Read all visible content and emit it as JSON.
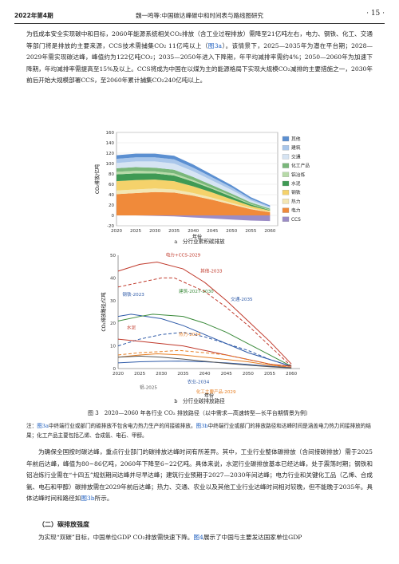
{
  "header": {
    "issue": "2022年第4期",
    "running_title": "魏一鸣等:中国碳达峰碳中和时间表与路线图研究",
    "page_number": "· 15 ·"
  },
  "para_top": {
    "text_1": "为低成本安全实现碳中和目标，2060年能源系统相关CO₂排放（含工业过程排放）需降至21亿吨左右，电力、钢铁、化工、交通等部门将是排放的主要来源，CCS技术需捕集CO₂ 11亿吨以上（",
    "link_1": "图3a",
    "text_2": "）。该情景下，2025—2035年为潜在平台期；2028—2029年需实现碳达峰，峰值约为122亿吨CO₂；2035—2050年进入下降期，年平均减排率需约4%；2050—2060年为加速下降期，年均减排率需提高至15%及以上。CCS将成为中国在以煤为主的能源格局下实现大规模CO₂减排的主要措施之一，2030年前后开始大规模部署CCS，至2060年累计捕集CO₂240亿吨以上。"
  },
  "figure_a": {
    "ylabel": "CO₂排放/亿吨",
    "xlabel": "年份",
    "sub_caption": "a　分行业累积碳排放"
  },
  "figure_b": {
    "ylabel": "CO₂排放路径/亿吨",
    "xlabel": "年份",
    "sub_caption": "b　分行业碳排放路径",
    "annotations": [
      "电力+CCS-2029",
      "其他-2033",
      "钢铁-2023",
      "建筑-2027-2030",
      "交通-2035",
      "水泥",
      "热力-2034",
      "铝-2025",
      "农业-2034",
      "化工主要产品-2029"
    ]
  },
  "figure_caption": "图 3　2020—2060 年各行业 CO₂ 排放路径（以中需求—高速转型—长平台期情景为例）",
  "figure_note": {
    "text_1": "注：",
    "link_1": "图3a",
    "text_2": "中终端行业或部门的碳排放不包含电力热力生产的间接碳排放。",
    "link_2": "图3b",
    "text_3": "中终端行业或部门的排放路径和达峰时间是涵盖电力热力间接排放的结果；化工产品主要包括乙烯、合成氨、电石、甲醇。"
  },
  "para_mid": {
    "text_1": "为确保全国按时碳达峰，重点行业部门的碳排放达峰时间有所差异。其中，工业行业整体碳排放（含间接碳排放）需于2025年前后达峰，峰值为80~86亿吨，2060年下降至6~22亿吨。具体来说，水泥行业碳排放基本已经达峰，处于震荡时期；钢铁和铝冶炼行业需在“十四五”规划期间达峰并尽早达峰；建筑行业预期于2027—2030年间达峰；电力行业和关键化工品（乙烯、合成氨、电石和甲醇）碳排放需在2029年前后达峰；热力、交通、农业以及其他工业行业达峰时间相对较晚，但不能晚于2035年。具体达峰时间和路径如",
    "link_1": "图3b",
    "text_2": "所示。"
  },
  "section": {
    "title": "（二）碳排放强度"
  },
  "para_bottom": {
    "text_1": "为实现“双碳”目标，中国单位GDP CO₂排放需快速下降。",
    "link_1": "图4",
    "text_2": "展示了中国与主要发达国家单位GDP"
  },
  "chart_data": [
    {
      "type": "area",
      "title": "",
      "xlabel": "年份",
      "ylabel": "CO₂排放/亿吨",
      "x": [
        2020,
        2025,
        2030,
        2035,
        2040,
        2045,
        2050,
        2055,
        2060
      ],
      "xlim": [
        2020,
        2062
      ],
      "ylim": [
        -20,
        160
      ],
      "yticks": [
        -20,
        0,
        20,
        40,
        60,
        80,
        100,
        120,
        140,
        160
      ],
      "grid": true,
      "legend_position": "right",
      "stack_order_bottom_to_top": [
        "电力",
        "热力",
        "钢铁",
        "水泥",
        "铝冶炼",
        "化工产品",
        "交通",
        "建筑",
        "其他"
      ],
      "series": [
        {
          "name": "其他",
          "color": "#5b8fd1",
          "values": [
            7,
            7,
            7,
            7,
            6,
            5,
            4,
            3,
            2
          ]
        },
        {
          "name": "建筑",
          "color": "#a9c6ea",
          "values": [
            8,
            8,
            8,
            8,
            7,
            6,
            5,
            3,
            2
          ]
        },
        {
          "name": "交通",
          "color": "#d6e4f3",
          "values": [
            10,
            11,
            12,
            12,
            11,
            9,
            7,
            4,
            2
          ]
        },
        {
          "name": "化工产品",
          "color": "#79b77a",
          "values": [
            7,
            7,
            7,
            7,
            6,
            5,
            4,
            3,
            2
          ]
        },
        {
          "name": "铝冶炼",
          "color": "#b7daa8",
          "values": [
            5,
            5,
            4,
            4,
            3,
            2,
            2,
            1,
            1
          ]
        },
        {
          "name": "水泥",
          "color": "#3f9a54",
          "values": [
            13,
            13,
            12,
            11,
            9,
            7,
            5,
            3,
            1
          ]
        },
        {
          "name": "钢铁",
          "color": "#f5d26b",
          "values": [
            18,
            18,
            17,
            16,
            13,
            10,
            7,
            4,
            2
          ]
        },
        {
          "name": "热力",
          "color": "#f3e6b3",
          "values": [
            7,
            7,
            7,
            6,
            5,
            4,
            3,
            2,
            1
          ]
        },
        {
          "name": "电力",
          "color": "#f08a3a",
          "values": [
            41,
            43,
            45,
            44,
            38,
            30,
            21,
            12,
            6
          ]
        },
        {
          "name": "CCS",
          "color": "#9b8cc6",
          "values": [
            0,
            0,
            -1,
            -2,
            -4,
            -6,
            -8,
            -10,
            -11
          ]
        }
      ]
    },
    {
      "type": "line",
      "title": "",
      "xlabel": "年份",
      "ylabel": "CO₂排放路径/亿吨",
      "xlim": [
        2020,
        2062
      ],
      "ylim": [
        0,
        50
      ],
      "yticks": [
        0,
        10,
        20,
        30,
        40,
        50
      ],
      "xticks": [
        2020,
        2025,
        2030,
        2035,
        2040,
        2045,
        2050,
        2055,
        2060
      ],
      "series": [
        {
          "name": "电力+CCS",
          "color": "#c0392b",
          "x": [
            2020,
            2025,
            2029,
            2035,
            2040,
            2045,
            2050,
            2055,
            2060
          ],
          "values": [
            43,
            46,
            47,
            44,
            38,
            30,
            21,
            12,
            2
          ]
        },
        {
          "name": "其他",
          "color": "#c0392b",
          "dashed": true,
          "x": [
            2020,
            2025,
            2030,
            2033,
            2040,
            2045,
            2050,
            2055,
            2060
          ],
          "values": [
            36,
            38,
            40,
            40,
            34,
            27,
            19,
            10,
            1
          ]
        },
        {
          "name": "钢铁",
          "color": "#2e5aa8",
          "x": [
            2020,
            2023,
            2030,
            2035,
            2040,
            2045,
            2050,
            2055,
            2060
          ],
          "values": [
            23,
            24,
            22,
            19,
            15,
            11,
            7,
            4,
            1
          ]
        },
        {
          "name": "建筑",
          "color": "#3a8a3a",
          "x": [
            2020,
            2025,
            2028,
            2035,
            2040,
            2045,
            2050,
            2055,
            2060
          ],
          "values": [
            21,
            23,
            24,
            23,
            20,
            16,
            11,
            6,
            1
          ]
        },
        {
          "name": "交通",
          "color": "#2e5aa8",
          "dashed": true,
          "x": [
            2020,
            2025,
            2030,
            2035,
            2040,
            2045,
            2050,
            2055,
            2060
          ],
          "values": [
            10,
            13,
            15,
            16,
            14,
            11,
            8,
            4,
            1
          ]
        },
        {
          "name": "水泥",
          "color": "#c0392b",
          "x": [
            2020,
            2025,
            2030,
            2035,
            2040,
            2045,
            2050,
            2055,
            2060
          ],
          "values": [
            13,
            12,
            11,
            10,
            8,
            6,
            4,
            2,
            1
          ]
        },
        {
          "name": "热力",
          "color": "#e67e22",
          "dashed": true,
          "x": [
            2020,
            2025,
            2030,
            2034,
            2040,
            2045,
            2050,
            2055,
            2060
          ],
          "values": [
            6,
            7,
            7.5,
            8,
            7,
            6,
            4,
            2,
            0.5
          ]
        },
        {
          "name": "化工主要产品",
          "color": "#e67e22",
          "x": [
            2020,
            2025,
            2029,
            2035,
            2040,
            2045,
            2050,
            2055,
            2060
          ],
          "values": [
            5,
            6,
            6.5,
            6,
            5,
            4,
            3,
            1.5,
            0.5
          ]
        },
        {
          "name": "农业",
          "color": "#2e5aa8",
          "x": [
            2020,
            2025,
            2030,
            2034,
            2040,
            2045,
            2050,
            2055,
            2060
          ],
          "values": [
            2.5,
            3,
            3.2,
            3.3,
            3,
            2.5,
            1.8,
            1,
            0.3
          ]
        },
        {
          "name": "铝",
          "color": "#555555",
          "x": [
            2020,
            2025,
            2030,
            2035,
            2040,
            2045,
            2050,
            2055,
            2060
          ],
          "values": [
            5,
            5.5,
            5,
            4.2,
            3.2,
            2.3,
            1.5,
            0.8,
            0.2
          ]
        }
      ]
    }
  ]
}
